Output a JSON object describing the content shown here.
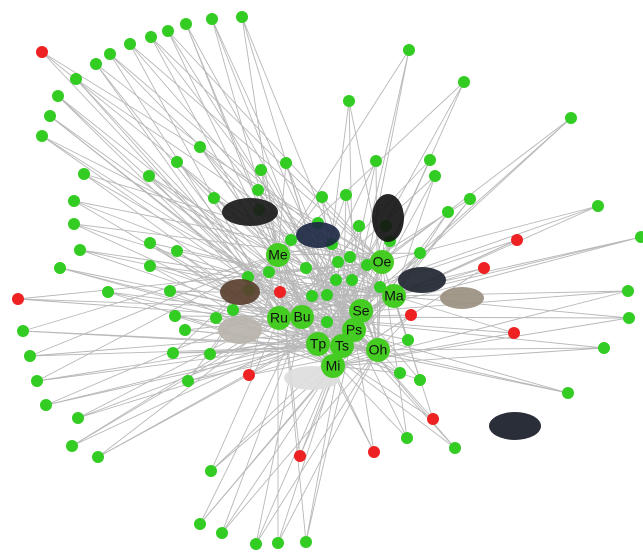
{
  "nodes": [
    {
      "label": "Me"
    },
    {
      "label": "Bu"
    },
    {
      "label": "Ru"
    },
    {
      "label": "Tp"
    },
    {
      "label": "Ts"
    },
    {
      "label": "Mi"
    },
    {
      "label": "Se"
    },
    {
      "label": "Ps"
    },
    {
      "label": "Oh"
    },
    {
      "label": "Ma"
    },
    {
      "label": "Oe"
    }
  ]
}
